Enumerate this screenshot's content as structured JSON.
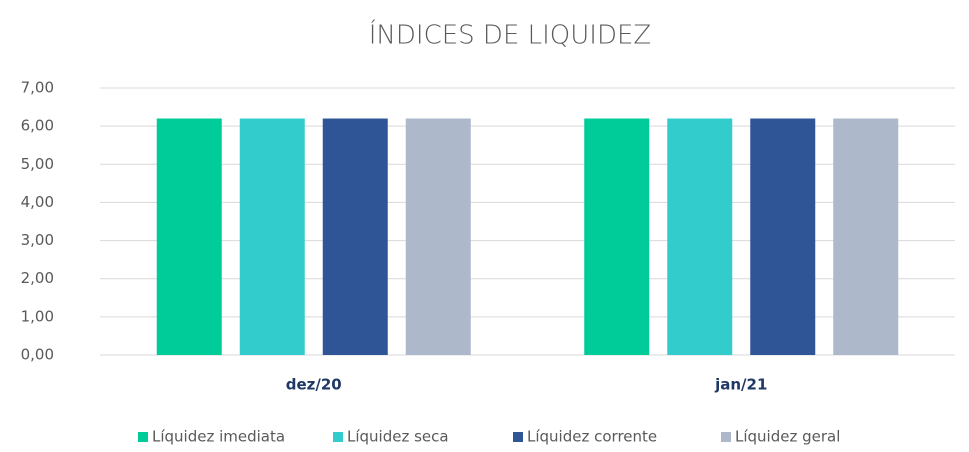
{
  "chart_data": {
    "type": "bar",
    "title": "ÍNDICES DE LIQUIDEZ",
    "categories": [
      "dez/20",
      "jan/21"
    ],
    "series": [
      {
        "name": "Líquidez imediata",
        "color": "#00cc99",
        "values": [
          6.2,
          6.2
        ]
      },
      {
        "name": "Líquidez seca",
        "color": "#33cccc",
        "values": [
          6.2,
          6.2
        ]
      },
      {
        "name": "Líquidez corrente",
        "color": "#2f5597",
        "values": [
          6.2,
          6.2
        ]
      },
      {
        "name": "Líquidez geral",
        "color": "#adb9ca",
        "values": [
          6.2,
          6.2
        ]
      }
    ],
    "ylim": [
      0,
      7
    ],
    "yticks": [
      {
        "value": 0,
        "label": "0,00"
      },
      {
        "value": 1,
        "label": "1,00"
      },
      {
        "value": 2,
        "label": "2,00"
      },
      {
        "value": 3,
        "label": "3,00"
      },
      {
        "value": 4,
        "label": "4,00"
      },
      {
        "value": 5,
        "label": "5,00"
      },
      {
        "value": 6,
        "label": "6,00"
      },
      {
        "value": 7,
        "label": "7,00"
      }
    ],
    "grid": true,
    "legend": "bottom"
  }
}
